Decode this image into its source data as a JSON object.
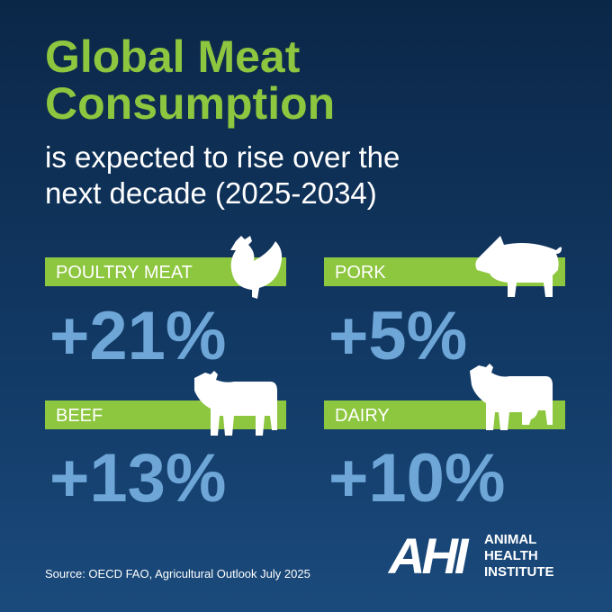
{
  "header": {
    "title_lines": [
      "Global Meat",
      "Consumption"
    ],
    "subtitle_lines": [
      "is expected to rise over the",
      "next decade (2025-2034)"
    ]
  },
  "items": [
    {
      "label": "POULTRY MEAT",
      "value": "+21%"
    },
    {
      "label": "PORK",
      "value": "+5%"
    },
    {
      "label": "BEEF",
      "value": "+13%"
    },
    {
      "label": "DAIRY",
      "value": "+10%"
    }
  ],
  "footer": {
    "source": "Source: OECD FAO, Agricultural Outlook July 2025"
  },
  "logo": {
    "mark": "AHI",
    "lines": [
      "ANIMAL",
      "HEALTH",
      "INSTITUTE"
    ]
  }
}
